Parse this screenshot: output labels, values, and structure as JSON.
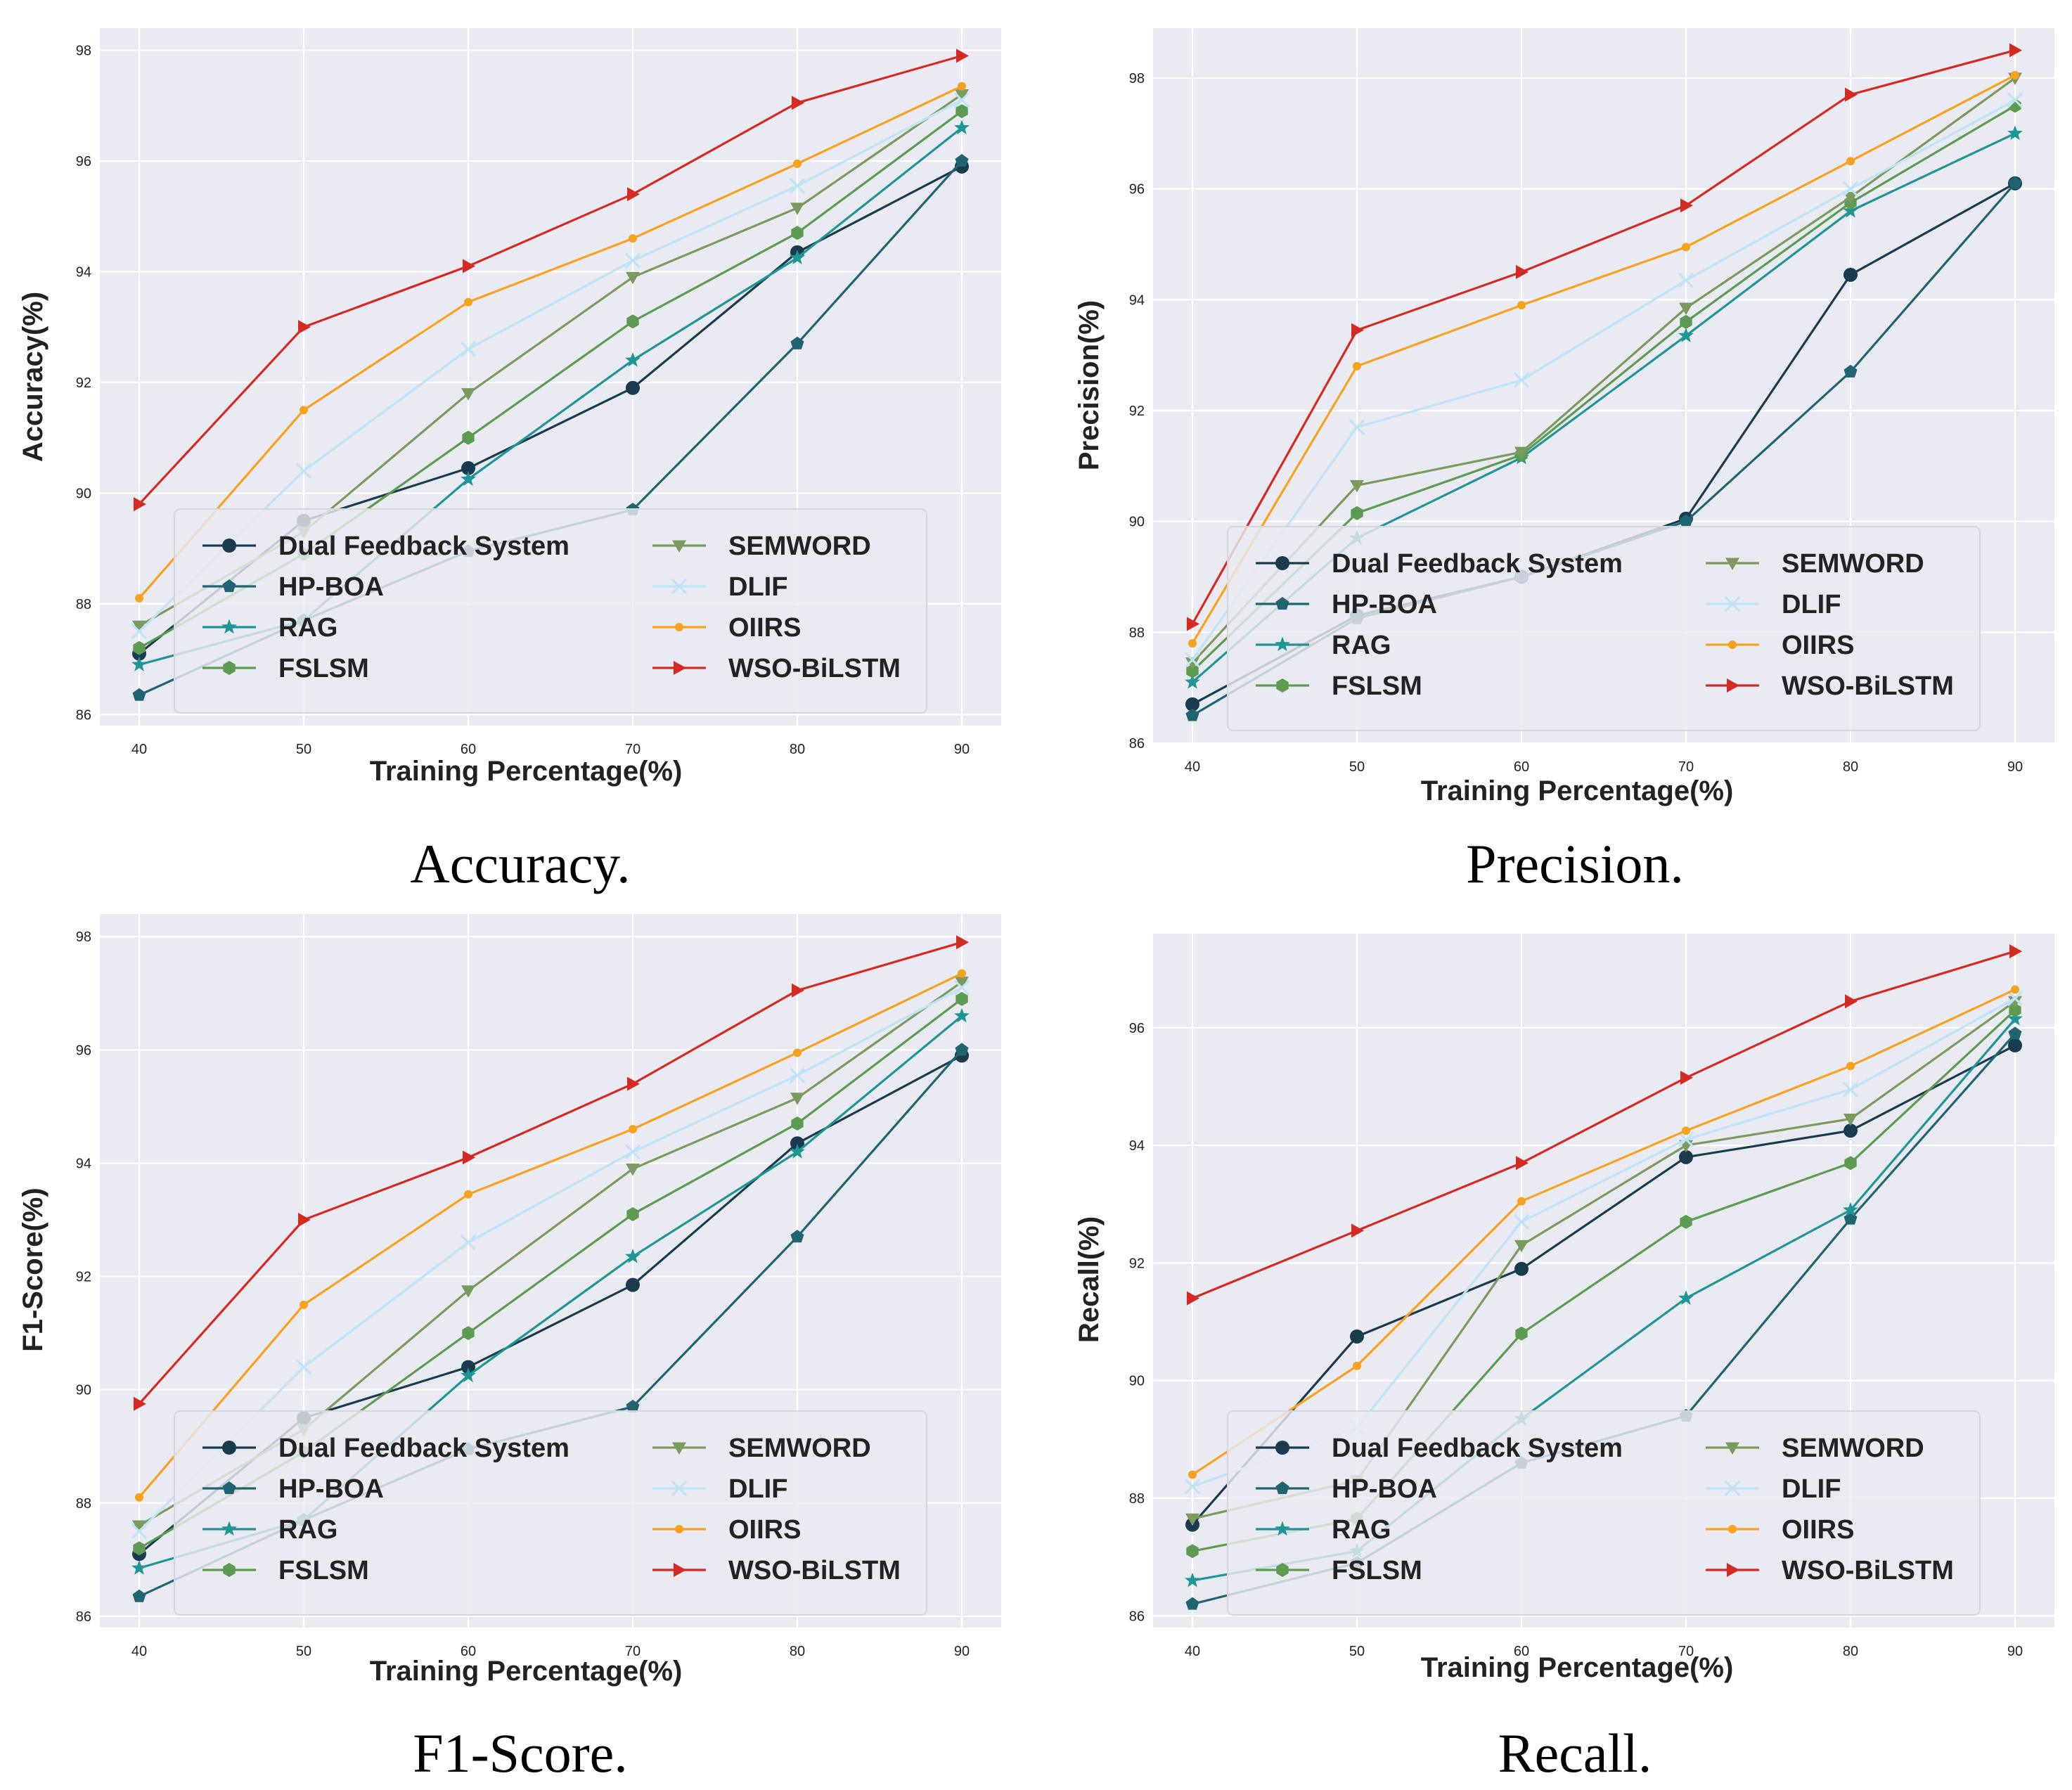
{
  "chart_data": [
    {
      "type": "line",
      "caption": "Accuracy.",
      "xlabel": "Training Percentage(%)",
      "ylabel": "Accuracy(%)",
      "x": [
        40,
        50,
        60,
        70,
        80,
        90
      ],
      "xticks": [
        "40",
        "50",
        "60",
        "70",
        "80",
        "90"
      ],
      "yticks": [
        "86",
        "88",
        "90",
        "92",
        "94",
        "96",
        "98"
      ],
      "ylim": [
        85.8,
        98.4
      ],
      "grid": true,
      "legend_location": "lower-center",
      "series": [
        {
          "name": "Dual Feedback System",
          "values": [
            87.1,
            89.5,
            90.45,
            91.9,
            94.35,
            95.9
          ]
        },
        {
          "name": "HP-BOA",
          "values": [
            86.35,
            87.7,
            88.95,
            89.7,
            92.7,
            96.0
          ]
        },
        {
          "name": "RAG",
          "values": [
            86.9,
            87.7,
            90.25,
            92.4,
            94.25,
            96.6
          ]
        },
        {
          "name": "FSLSM",
          "values": [
            87.2,
            88.9,
            91.0,
            93.1,
            94.7,
            96.9
          ]
        },
        {
          "name": "SEMWORD",
          "values": [
            87.6,
            89.3,
            91.8,
            93.9,
            95.15,
            97.2
          ]
        },
        {
          "name": "DLIF",
          "values": [
            87.5,
            90.4,
            92.6,
            94.2,
            95.55,
            97.1
          ]
        },
        {
          "name": "OIIRS",
          "values": [
            88.1,
            91.5,
            93.45,
            94.6,
            95.95,
            97.35
          ]
        },
        {
          "name": "WSO-BiLSTM",
          "values": [
            89.8,
            93.0,
            94.1,
            95.4,
            97.05,
            97.9
          ]
        }
      ]
    },
    {
      "type": "line",
      "caption": "Precision.",
      "xlabel": "Training Percentage(%)",
      "ylabel": "Precision(%)",
      "x": [
        40,
        50,
        60,
        70,
        80,
        90
      ],
      "xticks": [
        "40",
        "50",
        "60",
        "70",
        "80",
        "90"
      ],
      "yticks": [
        "86",
        "88",
        "90",
        "92",
        "94",
        "96",
        "98"
      ],
      "ylim": [
        86.0,
        98.9
      ],
      "grid": true,
      "legend_location": "lower-center",
      "series": [
        {
          "name": "Dual Feedback System",
          "values": [
            86.7,
            88.3,
            89.0,
            90.05,
            94.45,
            96.1
          ]
        },
        {
          "name": "HP-BOA",
          "values": [
            86.5,
            88.25,
            89.0,
            90.0,
            92.7,
            96.1
          ]
        },
        {
          "name": "RAG",
          "values": [
            87.1,
            89.7,
            91.15,
            93.35,
            95.6,
            97.0
          ]
        },
        {
          "name": "FSLSM",
          "values": [
            87.3,
            90.15,
            91.2,
            93.6,
            95.75,
            97.5
          ]
        },
        {
          "name": "SEMWORD",
          "values": [
            87.45,
            90.65,
            91.25,
            93.85,
            95.85,
            98.0
          ]
        },
        {
          "name": "DLIF",
          "values": [
            87.5,
            91.7,
            92.55,
            94.35,
            96.0,
            97.6
          ]
        },
        {
          "name": "OIIRS",
          "values": [
            87.8,
            92.8,
            93.9,
            94.95,
            96.5,
            98.05
          ]
        },
        {
          "name": "WSO-BiLSTM",
          "values": [
            88.15,
            93.45,
            94.5,
            95.7,
            97.7,
            98.5
          ]
        }
      ]
    },
    {
      "type": "line",
      "caption": "F1-Score.",
      "xlabel": "Training Percentage(%)",
      "ylabel": "F1-Score(%)",
      "x": [
        40,
        50,
        60,
        70,
        80,
        90
      ],
      "xticks": [
        "40",
        "50",
        "60",
        "70",
        "80",
        "90"
      ],
      "yticks": [
        "86",
        "88",
        "90",
        "92",
        "94",
        "96",
        "98"
      ],
      "ylim": [
        85.8,
        98.4
      ],
      "grid": true,
      "legend_location": "lower-center",
      "series": [
        {
          "name": "Dual Feedback System",
          "values": [
            87.1,
            89.5,
            90.4,
            91.85,
            94.35,
            95.9
          ]
        },
        {
          "name": "HP-BOA",
          "values": [
            86.35,
            87.7,
            88.95,
            89.7,
            92.7,
            96.0
          ]
        },
        {
          "name": "RAG",
          "values": [
            86.85,
            87.7,
            90.25,
            92.35,
            94.2,
            96.6
          ]
        },
        {
          "name": "FSLSM",
          "values": [
            87.2,
            88.9,
            91.0,
            93.1,
            94.7,
            96.9
          ]
        },
        {
          "name": "SEMWORD",
          "values": [
            87.6,
            89.3,
            91.75,
            93.9,
            95.15,
            97.2
          ]
        },
        {
          "name": "DLIF",
          "values": [
            87.5,
            90.4,
            92.6,
            94.2,
            95.55,
            97.1
          ]
        },
        {
          "name": "OIIRS",
          "values": [
            88.1,
            91.5,
            93.45,
            94.6,
            95.95,
            97.35
          ]
        },
        {
          "name": "WSO-BiLSTM",
          "values": [
            89.75,
            93.0,
            94.1,
            95.4,
            97.05,
            97.9
          ]
        }
      ]
    },
    {
      "type": "line",
      "caption": "Recall.",
      "xlabel": "Training Percentage(%)",
      "ylabel": "Recall(%)",
      "x": [
        40,
        50,
        60,
        70,
        80,
        90
      ],
      "xticks": [
        "40",
        "50",
        "60",
        "70",
        "80",
        "90"
      ],
      "yticks": [
        "86",
        "88",
        "90",
        "92",
        "94",
        "96"
      ],
      "ylim": [
        85.8,
        97.6
      ],
      "grid": true,
      "legend_location": "lower-center",
      "series": [
        {
          "name": "Dual Feedback System",
          "values": [
            87.55,
            90.75,
            91.9,
            93.8,
            94.25,
            95.7
          ]
        },
        {
          "name": "HP-BOA",
          "values": [
            86.2,
            86.9,
            88.6,
            89.4,
            92.75,
            95.9
          ]
        },
        {
          "name": "RAG",
          "values": [
            86.6,
            87.1,
            89.35,
            91.4,
            92.9,
            96.15
          ]
        },
        {
          "name": "FSLSM",
          "values": [
            87.1,
            87.65,
            90.8,
            92.7,
            93.7,
            96.3
          ]
        },
        {
          "name": "SEMWORD",
          "values": [
            87.65,
            88.3,
            92.3,
            94.0,
            94.45,
            96.45
          ]
        },
        {
          "name": "DLIF",
          "values": [
            88.2,
            89.2,
            92.7,
            94.1,
            94.95,
            96.5
          ]
        },
        {
          "name": "OIIRS",
          "values": [
            88.4,
            90.25,
            93.05,
            94.25,
            95.35,
            96.65
          ]
        },
        {
          "name": "WSO-BiLSTM",
          "values": [
            91.4,
            92.55,
            93.7,
            95.15,
            96.45,
            97.3
          ]
        }
      ]
    }
  ],
  "style": {
    "plot_background": "#eaeaf2",
    "grid_color": "#ffffff",
    "legend_background": "#eaeaf2",
    "series_colors": [
      "#1a3b4e",
      "#1f6470",
      "#1f9595",
      "#5e9b52",
      "#7a9a5e",
      "#bfe3f7",
      "#f6a21e",
      "#d42a24"
    ],
    "series_markers": [
      "circle",
      "pentagon",
      "star",
      "hexagon",
      "triangle-down",
      "x",
      "dot",
      "triangle-right"
    ]
  }
}
